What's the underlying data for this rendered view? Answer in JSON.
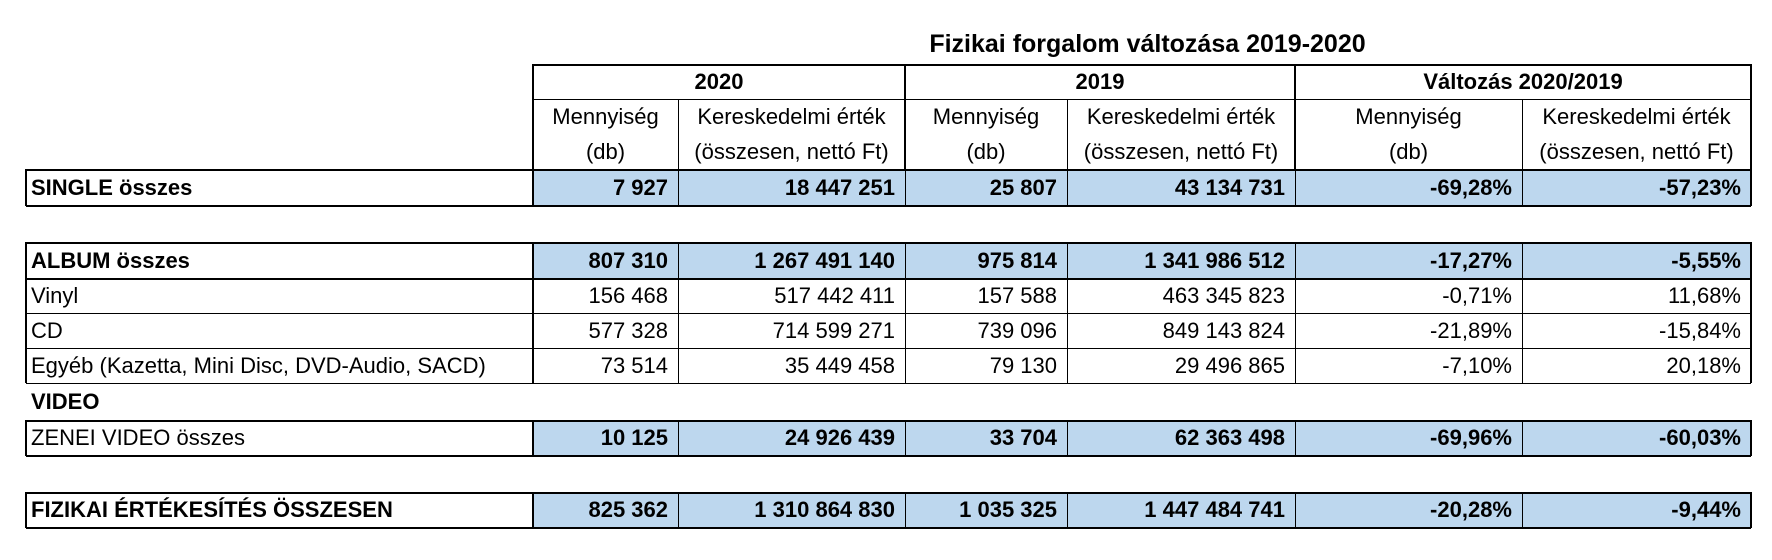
{
  "title": "Fizikai forgalom változása 2019-2020",
  "colors": {
    "highlight": "#bdd7ee",
    "border": "#000000"
  },
  "header": {
    "groups": [
      "2020",
      "2019",
      "Változás 2020/2019"
    ],
    "sub1": [
      "Mennyiség",
      "Kereskedelmi érték",
      "Mennyiség",
      "Kereskedelmi érték",
      "Mennyiség",
      "Kereskedelmi érték"
    ],
    "sub2": [
      "(db)",
      "(összesen, nettó Ft)",
      "(db)",
      "(összesen, nettó Ft)",
      "(db)",
      "(összesen, nettó Ft)"
    ]
  },
  "rows": {
    "single": {
      "label": "SINGLE összes",
      "values": [
        "7 927",
        "18 447 251",
        "25 807",
        "43 134 731",
        "-69,28%",
        "-57,23%"
      ]
    },
    "album": {
      "label": "ALBUM összes",
      "values": [
        "807 310",
        "1 267 491 140",
        "975 814",
        "1 341 986 512",
        "-17,27%",
        "-5,55%"
      ]
    },
    "vinyl": {
      "label": "Vinyl",
      "values": [
        "156 468",
        "517 442 411",
        "157 588",
        "463 345 823",
        "-0,71%",
        "11,68%"
      ]
    },
    "cd": {
      "label": "CD",
      "values": [
        "577 328",
        "714 599 271",
        "739 096",
        "849 143 824",
        "-21,89%",
        "-15,84%"
      ]
    },
    "egyeb": {
      "label": "Egyéb (Kazetta, Mini Disc, DVD-Audio, SACD)",
      "values": [
        "73 514",
        "35 449 458",
        "79 130",
        "29 496 865",
        "-7,10%",
        "20,18%"
      ]
    },
    "video_heading": {
      "label": "VIDEO"
    },
    "zenei_video": {
      "label": "ZENEI VIDEO összes",
      "values": [
        "10 125",
        "24 926 439",
        "33 704",
        "62 363 498",
        "-69,96%",
        "-60,03%"
      ]
    },
    "total": {
      "label": "FIZIKAI ÉRTÉKESÍTÉS ÖSSZESEN",
      "values": [
        "825 362",
        "1 310 864 830",
        "1 035 325",
        "1 447 484 741",
        "-20,28%",
        "-9,44%"
      ]
    }
  }
}
